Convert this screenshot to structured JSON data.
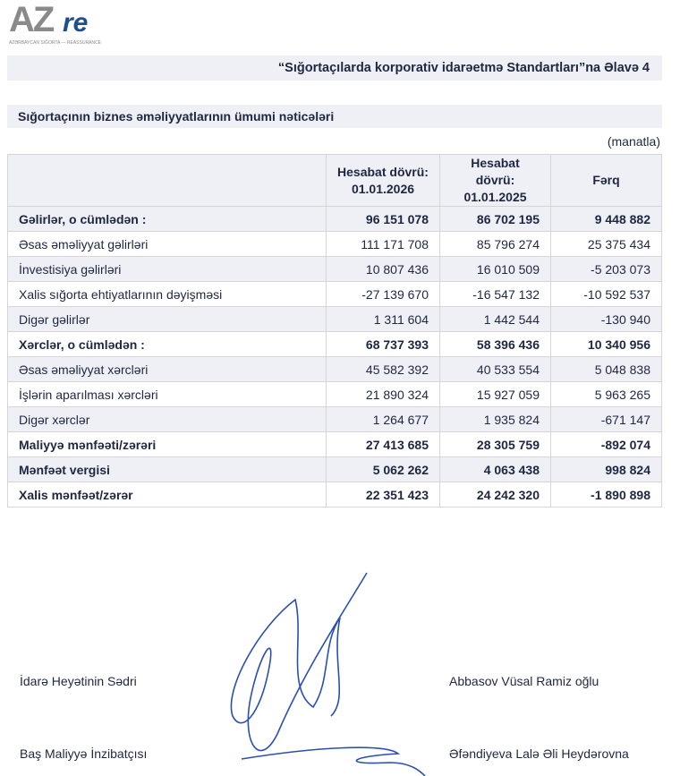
{
  "logo": {
    "text_main": "AZ",
    "text_accent": "re",
    "tagline": "AZƏRBAYCAN SIĞORTA — REASSURANCE"
  },
  "title": "“Sığortaçılarda korporativ idarəetmə Standartları”na Əlavə 4",
  "subtitle": "Sığortaçının biznes əməliyyatlarının ümumi nəticələri",
  "unit": "(manatla)",
  "table": {
    "headers": [
      [
        "",
        ""
      ],
      [
        "Hesabat dövrü:",
        "01.01.2026"
      ],
      [
        "Hesabat dövrü:",
        "01.01.2025"
      ],
      [
        "Fərq",
        ""
      ]
    ],
    "rows": [
      {
        "label": "Gəlirlər, o cümlədən :",
        "bold": true,
        "values": [
          "96 151 078",
          "86 702 195",
          "9 448 882"
        ]
      },
      {
        "label": "Əsas əməliyyat gəlirləri",
        "bold": false,
        "values": [
          "111 171 708",
          "85 796 274",
          "25 375 434"
        ]
      },
      {
        "label": "İnvestisiya gəlirləri",
        "bold": false,
        "values": [
          "10 807 436",
          "16 010 509",
          "-5 203 073"
        ]
      },
      {
        "label": "Xalis sığorta ehtiyatlarının dəyişməsi",
        "bold": false,
        "values": [
          "-27 139 670",
          "-16 547 132",
          "-10 592 537"
        ]
      },
      {
        "label": "Digər gəlirlər",
        "bold": false,
        "values": [
          "1 311 604",
          "1 442 544",
          "-130 940"
        ]
      },
      {
        "label": "Xərclər, o cümlədən :",
        "bold": true,
        "values": [
          "68 737 393",
          "58 396 436",
          "10 340 956"
        ]
      },
      {
        "label": "Əsas əməliyyat xərcləri",
        "bold": false,
        "values": [
          "45 582 392",
          "40 533 554",
          "5 048 838"
        ]
      },
      {
        "label": "İşlərin aparılması xərcləri",
        "bold": false,
        "values": [
          "21 890 324",
          "15 927 059",
          "5 963 265"
        ]
      },
      {
        "label": "Digər xərclər",
        "bold": false,
        "values": [
          "1 264 677",
          "1 935 824",
          "-671 147"
        ]
      },
      {
        "label": "Maliyyə mənfəəti/zərəri",
        "bold": true,
        "values": [
          "27 413 685",
          "28 305 759",
          "-892 074"
        ]
      },
      {
        "label": "Mənfəət vergisi",
        "bold": true,
        "values": [
          "5 062 262",
          "4 063 438",
          "998 824"
        ]
      },
      {
        "label": "Xalis mənfəət/zərər",
        "bold": true,
        "values": [
          "22 351 423",
          "24 242 320",
          "-1 890 898"
        ]
      }
    ]
  },
  "signatures": [
    {
      "role": "İdarə Heyətinin Sədri",
      "name": "Abbasov Vüsal Ramiz oğlu"
    },
    {
      "role": "Baş Maliyyə İnzibatçısı",
      "name": "Əfəndiyeva Lalə Əli Heydərovna"
    }
  ],
  "colors": {
    "band": "#eef0f6",
    "text": "#1f2640",
    "signature_ink": "#2a4fb0",
    "logo_accent": "#1d4f8c"
  }
}
